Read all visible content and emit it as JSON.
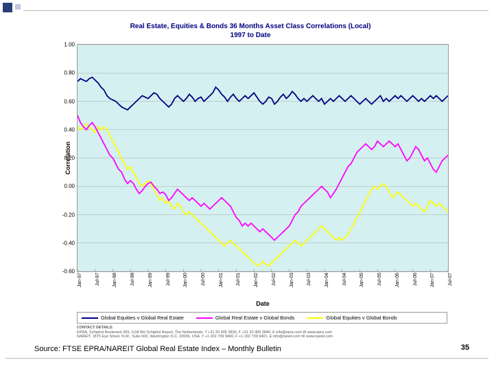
{
  "chart": {
    "type": "line",
    "title_line1": "Real Estate, Equities & Bonds 36 Months Asset Class Correlations (Local)",
    "title_line2": "1997 to Date",
    "title_color": "#000080",
    "title_fontsize": 10,
    "y_label": "Correlation",
    "x_label": "Date",
    "label_fontsize": 9,
    "background_color": "#d4f0f0",
    "grid_color": "#aaaaaa",
    "border_color": "#999999",
    "ylim": [
      -0.6,
      1.0
    ],
    "ytick_step": 0.2,
    "yticks": [
      "1.00",
      "0.80",
      "0.60",
      "0.40",
      "0.20",
      "0.00",
      "-0.20",
      "-0.40",
      "-0.60"
    ],
    "xticks": [
      "Jan-97",
      "Jul-97",
      "Jan-98",
      "Jul-98",
      "Jan-99",
      "Jul-99",
      "Jan-00",
      "Jul-00",
      "Jan-01",
      "Jul-01",
      "Jan-02",
      "Jul-02",
      "Jan-03",
      "Jul-03",
      "Jan-04",
      "Jul-04",
      "Jan-05",
      "Jul-05",
      "Jan-06",
      "Jul-06",
      "Jan-07",
      "Jul-07"
    ],
    "line_width": 1.8,
    "series": [
      {
        "name": "Global Equities v Global Real Estate",
        "color": "#000080",
        "values": [
          0.74,
          0.76,
          0.75,
          0.74,
          0.76,
          0.77,
          0.75,
          0.73,
          0.7,
          0.68,
          0.64,
          0.62,
          0.61,
          0.6,
          0.58,
          0.56,
          0.55,
          0.54,
          0.56,
          0.58,
          0.6,
          0.62,
          0.64,
          0.63,
          0.62,
          0.64,
          0.66,
          0.65,
          0.62,
          0.6,
          0.58,
          0.56,
          0.58,
          0.62,
          0.64,
          0.62,
          0.6,
          0.62,
          0.65,
          0.63,
          0.6,
          0.62,
          0.63,
          0.6,
          0.62,
          0.64,
          0.66,
          0.7,
          0.68,
          0.65,
          0.63,
          0.6,
          0.63,
          0.65,
          0.62,
          0.6,
          0.62,
          0.64,
          0.62,
          0.64,
          0.66,
          0.63,
          0.6,
          0.58,
          0.6,
          0.63,
          0.62,
          0.58,
          0.6,
          0.63,
          0.65,
          0.62,
          0.64,
          0.67,
          0.65,
          0.62,
          0.6,
          0.62,
          0.6,
          0.62,
          0.64,
          0.62,
          0.6,
          0.62,
          0.58,
          0.6,
          0.62,
          0.6,
          0.62,
          0.64,
          0.62,
          0.6,
          0.62,
          0.64,
          0.62,
          0.6,
          0.58,
          0.6,
          0.62,
          0.6,
          0.58,
          0.6,
          0.62,
          0.64,
          0.6,
          0.62,
          0.6,
          0.62,
          0.64,
          0.62,
          0.64,
          0.62,
          0.6,
          0.62,
          0.64,
          0.62,
          0.6,
          0.62,
          0.6,
          0.62,
          0.64,
          0.62,
          0.64,
          0.62,
          0.6,
          0.62,
          0.64
        ]
      },
      {
        "name": "Global Real Estate v Global Bonds",
        "color": "#ff00ff",
        "values": [
          0.5,
          0.45,
          0.42,
          0.4,
          0.43,
          0.45,
          0.42,
          0.38,
          0.34,
          0.3,
          0.26,
          0.22,
          0.2,
          0.16,
          0.12,
          0.1,
          0.05,
          0.02,
          0.04,
          0.02,
          -0.02,
          -0.05,
          -0.03,
          0.0,
          0.02,
          0.03,
          0.0,
          -0.02,
          -0.05,
          -0.04,
          -0.06,
          -0.1,
          -0.08,
          -0.05,
          -0.02,
          -0.04,
          -0.06,
          -0.08,
          -0.1,
          -0.08,
          -0.1,
          -0.12,
          -0.14,
          -0.12,
          -0.14,
          -0.16,
          -0.14,
          -0.12,
          -0.1,
          -0.08,
          -0.1,
          -0.12,
          -0.14,
          -0.18,
          -0.22,
          -0.24,
          -0.28,
          -0.26,
          -0.28,
          -0.26,
          -0.28,
          -0.3,
          -0.32,
          -0.3,
          -0.32,
          -0.34,
          -0.36,
          -0.38,
          -0.36,
          -0.34,
          -0.32,
          -0.3,
          -0.28,
          -0.24,
          -0.2,
          -0.18,
          -0.14,
          -0.12,
          -0.1,
          -0.08,
          -0.06,
          -0.04,
          -0.02,
          0.0,
          -0.02,
          -0.04,
          -0.08,
          -0.05,
          -0.02,
          0.02,
          0.06,
          0.1,
          0.14,
          0.16,
          0.2,
          0.24,
          0.26,
          0.28,
          0.3,
          0.28,
          0.26,
          0.28,
          0.32,
          0.3,
          0.28,
          0.3,
          0.32,
          0.3,
          0.28,
          0.3,
          0.26,
          0.22,
          0.18,
          0.2,
          0.24,
          0.28,
          0.26,
          0.22,
          0.18,
          0.2,
          0.16,
          0.12,
          0.1,
          0.14,
          0.18,
          0.2,
          0.22
        ]
      },
      {
        "name": "Global Equities v Global Bonds",
        "color": "#ffff00",
        "values": [
          0.42,
          0.4,
          0.42,
          0.44,
          0.42,
          0.4,
          0.38,
          0.42,
          0.4,
          0.42,
          0.4,
          0.36,
          0.32,
          0.28,
          0.24,
          0.2,
          0.16,
          0.12,
          0.14,
          0.1,
          0.06,
          0.02,
          0.0,
          0.02,
          0.04,
          0.02,
          -0.02,
          -0.06,
          -0.1,
          -0.08,
          -0.12,
          -0.1,
          -0.14,
          -0.16,
          -0.12,
          -0.14,
          -0.18,
          -0.2,
          -0.18,
          -0.2,
          -0.22,
          -0.24,
          -0.26,
          -0.28,
          -0.3,
          -0.32,
          -0.34,
          -0.36,
          -0.38,
          -0.4,
          -0.42,
          -0.4,
          -0.38,
          -0.4,
          -0.42,
          -0.44,
          -0.46,
          -0.48,
          -0.5,
          -0.52,
          -0.54,
          -0.56,
          -0.55,
          -0.53,
          -0.55,
          -0.56,
          -0.54,
          -0.52,
          -0.5,
          -0.48,
          -0.46,
          -0.44,
          -0.42,
          -0.4,
          -0.38,
          -0.4,
          -0.42,
          -0.4,
          -0.38,
          -0.36,
          -0.34,
          -0.32,
          -0.3,
          -0.28,
          -0.3,
          -0.32,
          -0.34,
          -0.36,
          -0.38,
          -0.36,
          -0.38,
          -0.36,
          -0.34,
          -0.3,
          -0.26,
          -0.22,
          -0.18,
          -0.14,
          -0.1,
          -0.06,
          -0.02,
          0.0,
          -0.02,
          0.0,
          0.02,
          0.0,
          -0.04,
          -0.08,
          -0.06,
          -0.04,
          -0.06,
          -0.08,
          -0.1,
          -0.12,
          -0.14,
          -0.12,
          -0.14,
          -0.16,
          -0.18,
          -0.14,
          -0.1,
          -0.12,
          -0.14,
          -0.12,
          -0.14,
          -0.16,
          -0.18
        ]
      }
    ]
  },
  "legend": {
    "items": [
      {
        "label": "Global Equities v Global Real Estate",
        "color": "#000080"
      },
      {
        "label": "Global Real Estate v Global Bonds",
        "color": "#ff00ff"
      },
      {
        "label": "Global Equities v Global Bonds",
        "color": "#ffff00"
      }
    ]
  },
  "contact": {
    "heading": "CONTACT DETAILS:",
    "line1": "EPRA, Schiphol Boulevard 283, 1118 BH Schiphol Airport, The Netherlands. T +31 20 405 3830, F +31 20 405 3840. E info@epra.com  W www.epra.com",
    "line2": "NAREIT, 1875 Eye Street, N.W., Suite 600, Washington D.C. 20006, USA. T +1 202 739 9400, F +1 202 739 9401. E info@nareit.com  W www.nareit.com"
  },
  "source_text": "Source: FTSE EPRA/NAREIT Global Real Estate Index – Monthly Bulletin",
  "page_number": "35"
}
